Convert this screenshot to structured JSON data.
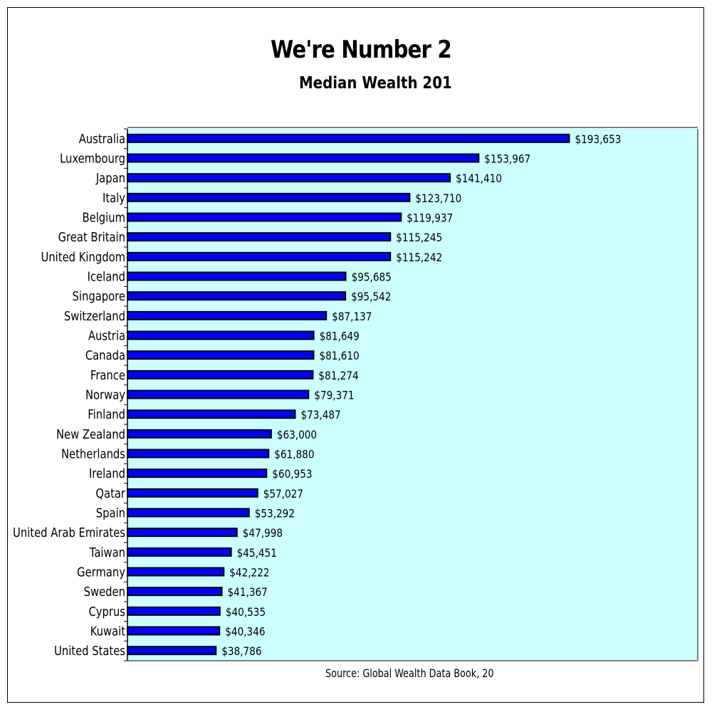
{
  "chart_data": {
    "type": "bar",
    "orientation": "horizontal",
    "title": "We're Number 2",
    "subtitle": "Median Wealth 201",
    "source": "Source: Global Wealth Data Book, 20",
    "xlim": [
      0,
      250000
    ],
    "grid": false,
    "legend": "none",
    "colors": {
      "bar": "#0000ff",
      "bar_border": "#000000",
      "plot_bg": "#ccffff",
      "plot_border": "#808080"
    },
    "categories": [
      "Australia",
      "Luxembourg",
      "Japan",
      "Italy",
      "Belgium",
      "Great Britain",
      "United Kingdom",
      "Iceland",
      "Singapore",
      "Switzerland",
      "Austria",
      "Canada",
      "France",
      "Norway",
      "Finland",
      "New Zealand",
      "Netherlands",
      "Ireland",
      "Qatar",
      "Spain",
      "United Arab Emirates",
      "Taiwan",
      "Germany",
      "Sweden",
      "Cyprus",
      "Kuwait",
      "United States"
    ],
    "values": [
      193653,
      153967,
      141410,
      123710,
      119937,
      115245,
      115242,
      95685,
      95542,
      87137,
      81649,
      81610,
      81274,
      79371,
      73487,
      63000,
      61880,
      60953,
      57027,
      53292,
      47998,
      45451,
      42222,
      41367,
      40535,
      40346,
      38786
    ],
    "data_labels": [
      "$193,653",
      "$153,967",
      "$141,410",
      "$123,710",
      "$119,937",
      "$115,245",
      "$115,242",
      "$95,685",
      "$95,542",
      "$87,137",
      "$81,649",
      "$81,610",
      "$81,274",
      "$79,371",
      "$73,487",
      "$63,000",
      "$61,880",
      "$60,953",
      "$57,027",
      "$53,292",
      "$47,998",
      "$45,451",
      "$42,222",
      "$41,367",
      "$40,535",
      "$40,346",
      "$38,786"
    ]
  }
}
